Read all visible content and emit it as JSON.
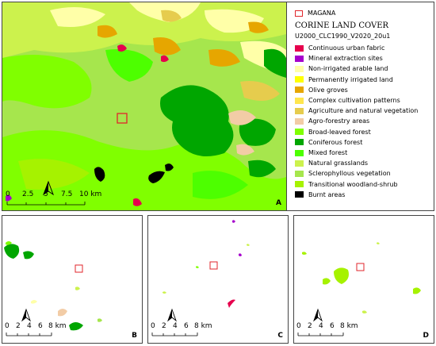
{
  "legend": {
    "aoi_label": "MAGANA",
    "title": "CORINE LAND COVER",
    "layer": "U2000_CLC1990_V2020_20u1",
    "classes": [
      {
        "label": "Continuous urban fabric",
        "color": "#e6004d"
      },
      {
        "label": "Mineral extraction sites",
        "color": "#a600cc"
      },
      {
        "label": "Non-irrigated arable land",
        "color": "#ffffa8"
      },
      {
        "label": "Permanently irrigated land",
        "color": "#ffff00"
      },
      {
        "label": "Olive groves",
        "color": "#e6a600"
      },
      {
        "label": "Complex cultivation patterns",
        "color": "#ffe64d"
      },
      {
        "label": "Agriculture and natural vegetation",
        "color": "#e6cc4d"
      },
      {
        "label": "Agro-forestry areas",
        "color": "#f2cca6"
      },
      {
        "label": "Broad-leaved forest",
        "color": "#80ff00"
      },
      {
        "label": "Coniferous forest",
        "color": "#00a600"
      },
      {
        "label": "Mixed forest",
        "color": "#4dff00"
      },
      {
        "label": "Natural grasslands",
        "color": "#ccf24d"
      },
      {
        "label": "Sclerophyllous vegetation",
        "color": "#a6e64d"
      },
      {
        "label": "Transitional woodland-shrub",
        "color": "#a6f200"
      },
      {
        "label": "Burnt areas",
        "color": "#000000"
      }
    ]
  },
  "panels": {
    "a": {
      "letter": "A",
      "scale": [
        "0",
        "2.5",
        "5",
        "7.5",
        "10 km"
      ]
    },
    "b": {
      "letter": "B",
      "scale": [
        "0",
        "2",
        "4",
        "6",
        "8 km"
      ]
    },
    "c": {
      "letter": "C",
      "scale": [
        "0",
        "2",
        "4",
        "6",
        "8 km"
      ]
    },
    "d": {
      "letter": "D",
      "scale": [
        "0",
        "2",
        "4",
        "6",
        "8 km"
      ]
    }
  },
  "colors": {
    "aoi_outline": "#e0262b"
  }
}
